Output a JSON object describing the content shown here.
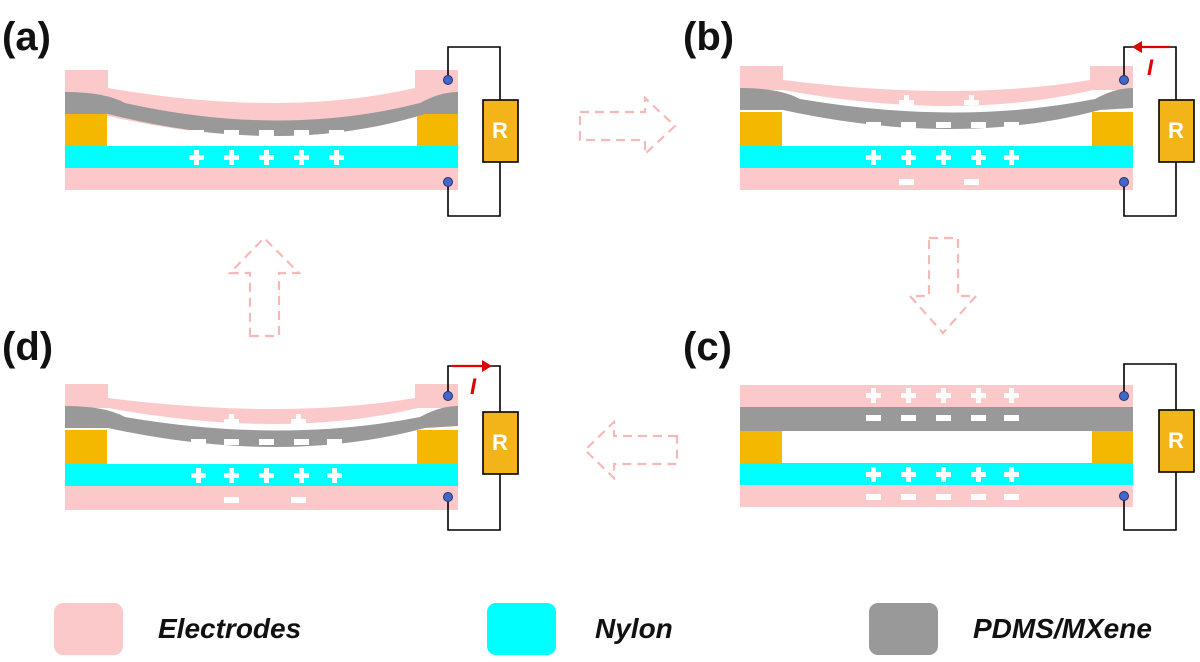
{
  "panels": [
    {
      "label": "(a)",
      "resistor": "R"
    },
    {
      "label": "(b)",
      "resistor": "R",
      "current": "I"
    },
    {
      "label": "(c)",
      "resistor": "R"
    },
    {
      "label": "(d)",
      "resistor": "R",
      "current": "I"
    }
  ],
  "legend": [
    {
      "label": "Electrodes",
      "color": "#fbc9c9"
    },
    {
      "label": "Nylon",
      "color": "#00ffff"
    },
    {
      "label": "PDMS/MXene",
      "color": "#999999"
    }
  ],
  "colors": {
    "electrode": "#fbc9c9",
    "nylon": "#00ffff",
    "pdms": "#999999",
    "spacer": "#f5b800",
    "resistor": "#f2b418",
    "current_arrow": "#e00000",
    "flow_arrow": "#f7b8b8",
    "wire": "#000000",
    "terminal": "#4466cc"
  }
}
